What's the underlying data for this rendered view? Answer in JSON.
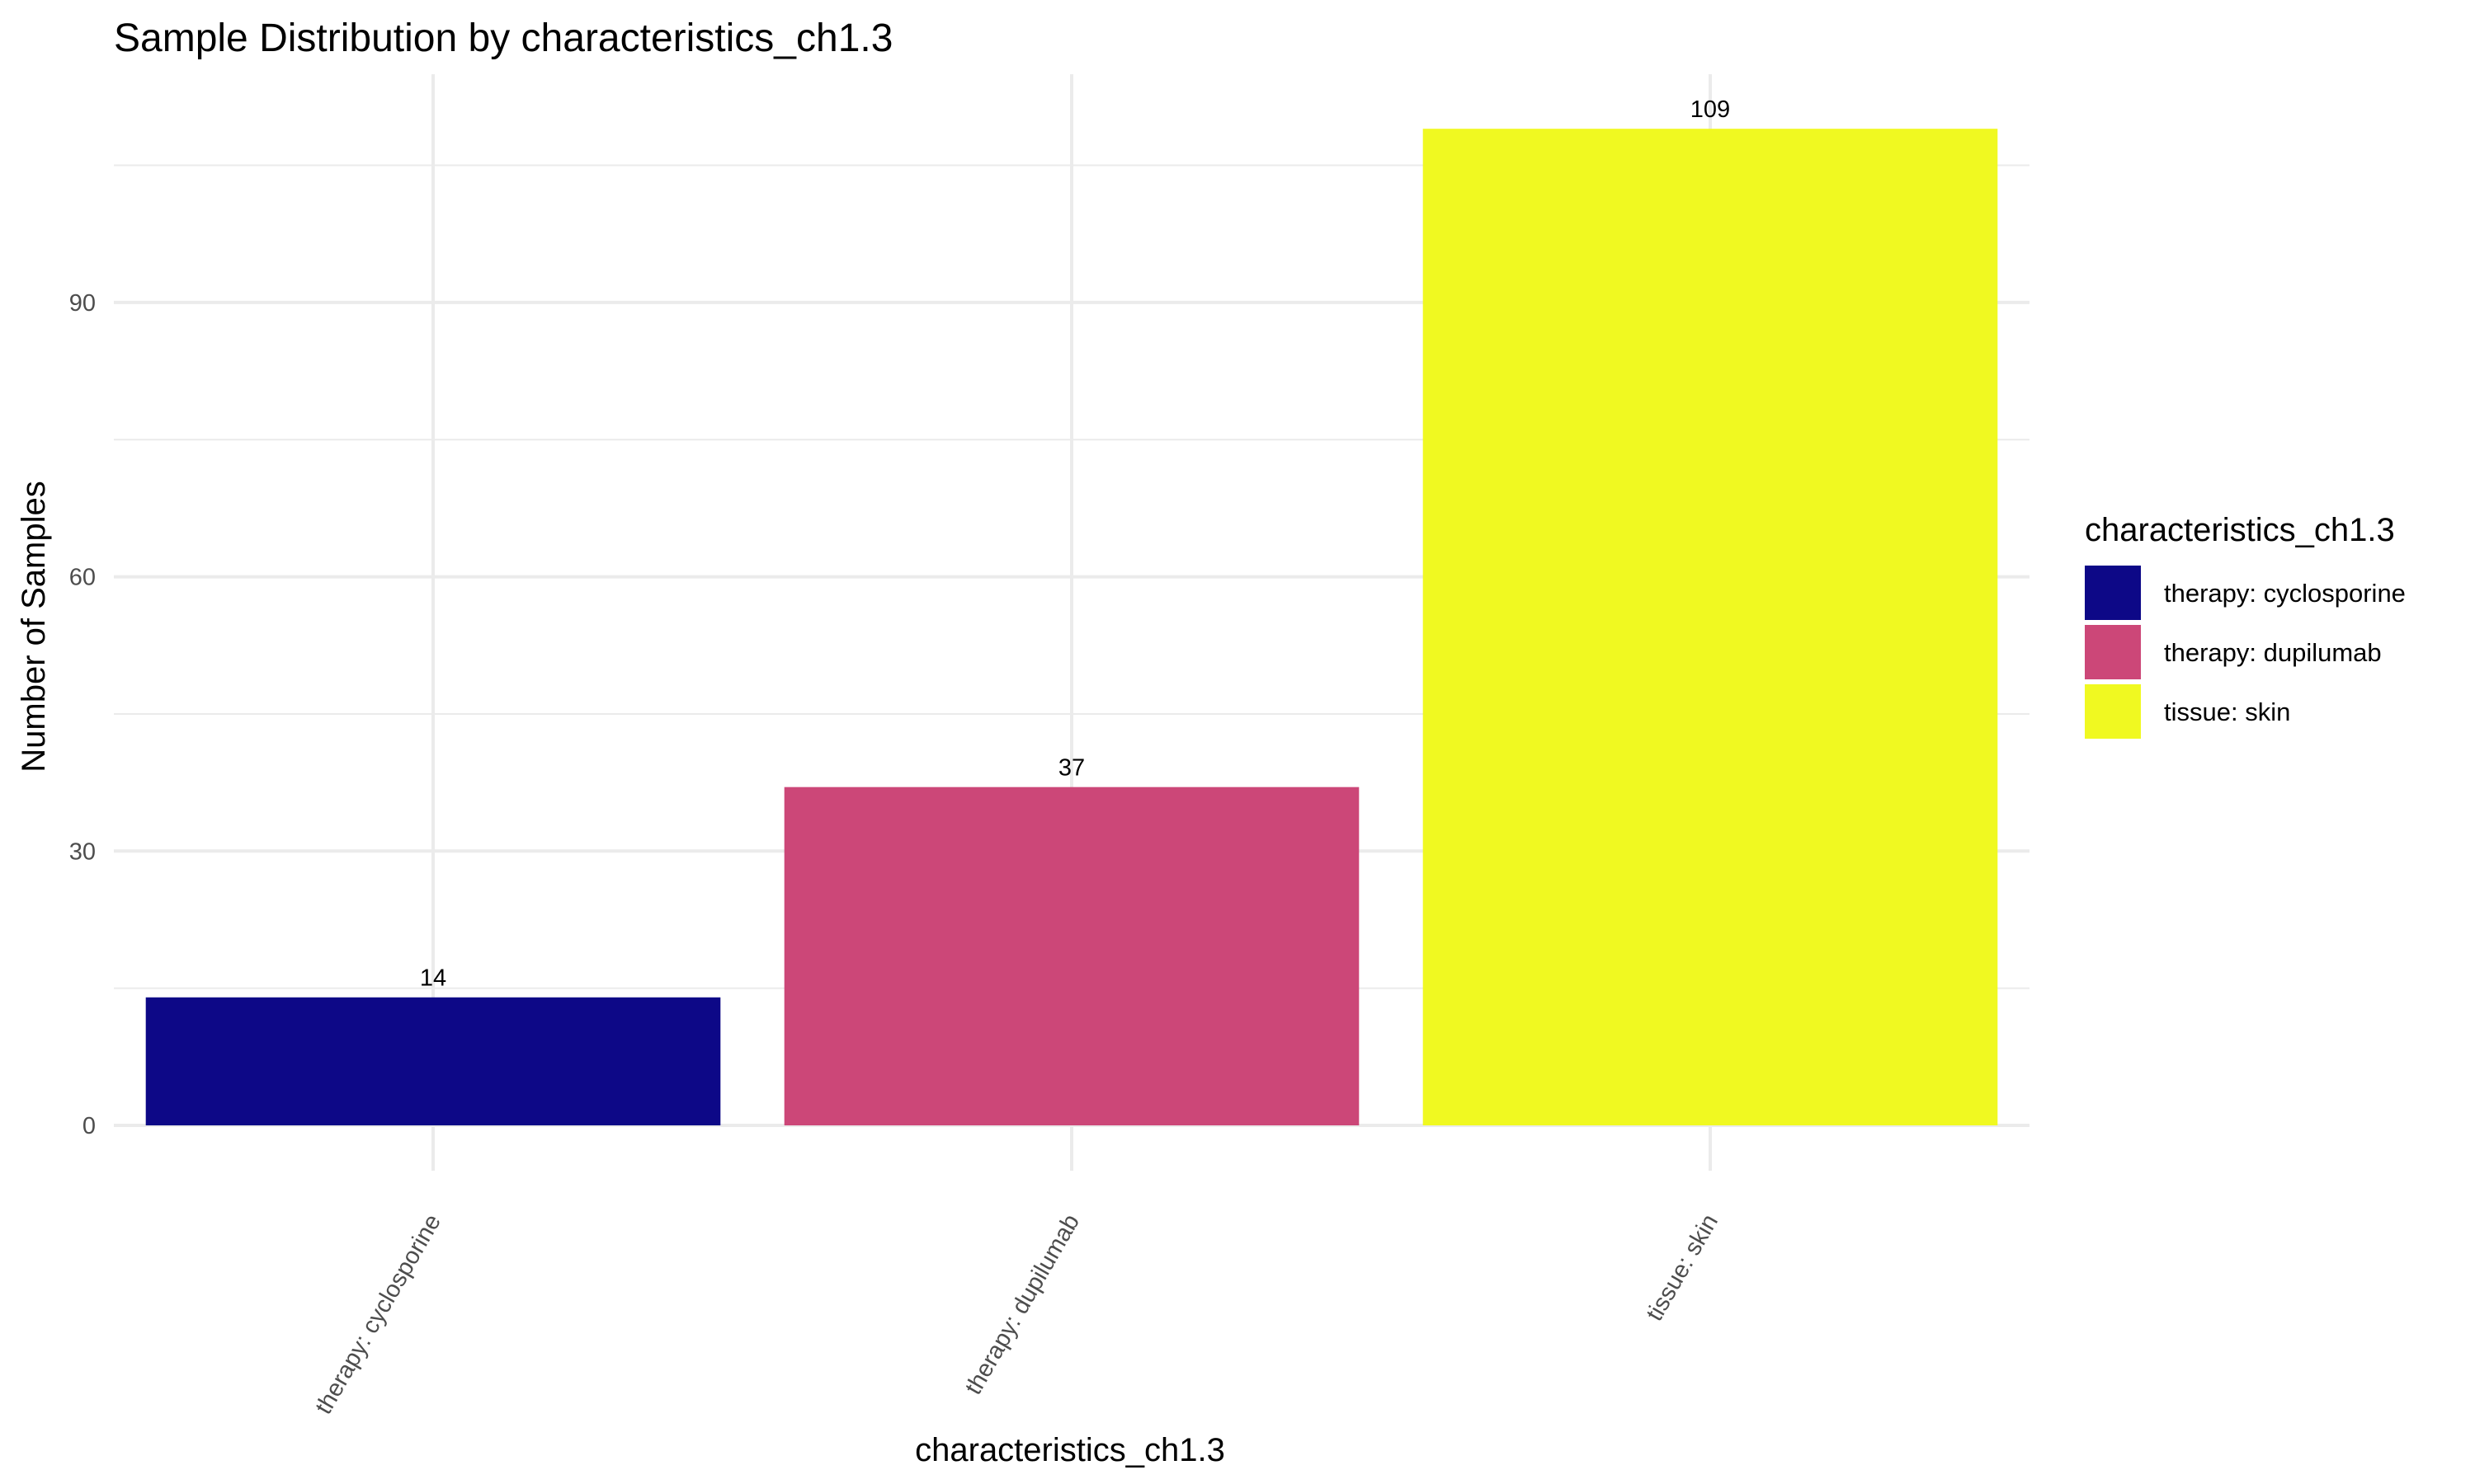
{
  "chart_data": {
    "type": "bar",
    "title": "Sample Distribution by characteristics_ch1.3",
    "xlabel": "characteristics_ch1.3",
    "ylabel": "Number of Samples",
    "categories": [
      "therapy: cyclosporine",
      "therapy: dupilumab",
      "tissue: skin"
    ],
    "values": [
      14,
      37,
      109
    ],
    "data_labels": [
      "14",
      "37",
      "109"
    ],
    "colors": [
      "#0d0887",
      "#cc4778",
      "#f0f921"
    ],
    "ylim": [
      0,
      115
    ],
    "yticks": [
      0,
      30,
      60,
      90
    ],
    "ytick_labels": [
      "0",
      "30",
      "60",
      "90"
    ],
    "grid": true,
    "legend": {
      "title": "characteristics_ch1.3",
      "position": "right",
      "entries": [
        "therapy: cyclosporine",
        "therapy: dupilumab",
        "tissue: skin"
      ]
    }
  }
}
